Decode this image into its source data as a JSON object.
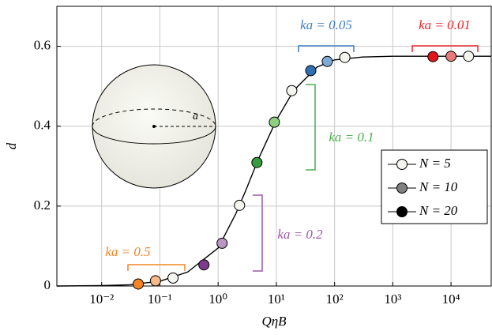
{
  "chart_data": {
    "type": "scatter",
    "x_label": "QηB",
    "y_label": "d",
    "x_log": true,
    "grid": true,
    "xlim": [
      0.0017,
      49000
    ],
    "ylim": [
      0,
      0.7
    ],
    "xticks": [
      {
        "value": 0.01,
        "label": "10⁻²"
      },
      {
        "value": 0.1,
        "label": "10⁻¹"
      },
      {
        "value": 1,
        "label": "10⁰"
      },
      {
        "value": 10,
        "label": "10¹"
      },
      {
        "value": 100,
        "label": "10²"
      },
      {
        "value": 1000,
        "label": "10³"
      },
      {
        "value": 10000,
        "label": "10⁴"
      }
    ],
    "yticks": [
      0,
      0.2,
      0.4,
      0.6
    ],
    "curve": {
      "color": "#000000",
      "x": [
        0.0017,
        0.01,
        0.03,
        0.1,
        0.3,
        1,
        2,
        3,
        5,
        10,
        20,
        50,
        100,
        300,
        1000,
        49000
      ],
      "values": [
        0,
        0.001,
        0.003,
        0.012,
        0.035,
        0.095,
        0.18,
        0.24,
        0.32,
        0.415,
        0.49,
        0.548,
        0.566,
        0.573,
        0.575,
        0.575
      ]
    },
    "groups": [
      {
        "label": "ka = 0.5",
        "color": "#f28522",
        "x": [
          0.0425,
          0.084,
          0.168
        ],
        "values": [
          0.005,
          0.013,
          0.02
        ],
        "colors": [
          "#f28522",
          "#f5b98a",
          "#f5f5f0"
        ]
      },
      {
        "label": "ka = 0.2",
        "color": "#9b59a6",
        "x": [
          0.57,
          1.17,
          2.33
        ],
        "values": [
          0.053,
          0.107,
          0.202
        ],
        "colors": [
          "#7e3a8c",
          "#b898c0",
          "#f5f5f0"
        ]
      },
      {
        "label": "ka = 0.1",
        "color": "#4caf50",
        "x": [
          4.64,
          9.25,
          18.4
        ],
        "values": [
          0.309,
          0.41,
          0.489
        ],
        "colors": [
          "#3a9a3e",
          "#8ccf7e",
          "#f5f5f0"
        ]
      },
      {
        "label": "ka = 0.05",
        "color": "#3d7fc1",
        "x": [
          39,
          75,
          150
        ],
        "values": [
          0.539,
          0.562,
          0.572
        ],
        "colors": [
          "#2f6fb3",
          "#7ea8d6",
          "#f5f5f0"
        ]
      },
      {
        "label": "ka = 0.01",
        "color": "#e8262a",
        "x": [
          4900,
          10000,
          20000
        ],
        "values": [
          0.574,
          0.575,
          0.575
        ],
        "colors": [
          "#e3141a",
          "#e87a7a",
          "#f5f5f0"
        ]
      }
    ],
    "inset_label": "a",
    "series": [
      {
        "name": "N = 5",
        "color": "#f5f5f0"
      },
      {
        "name": "N = 10",
        "color": "#808080"
      },
      {
        "name": "N = 20",
        "color": "#000000"
      }
    ]
  }
}
